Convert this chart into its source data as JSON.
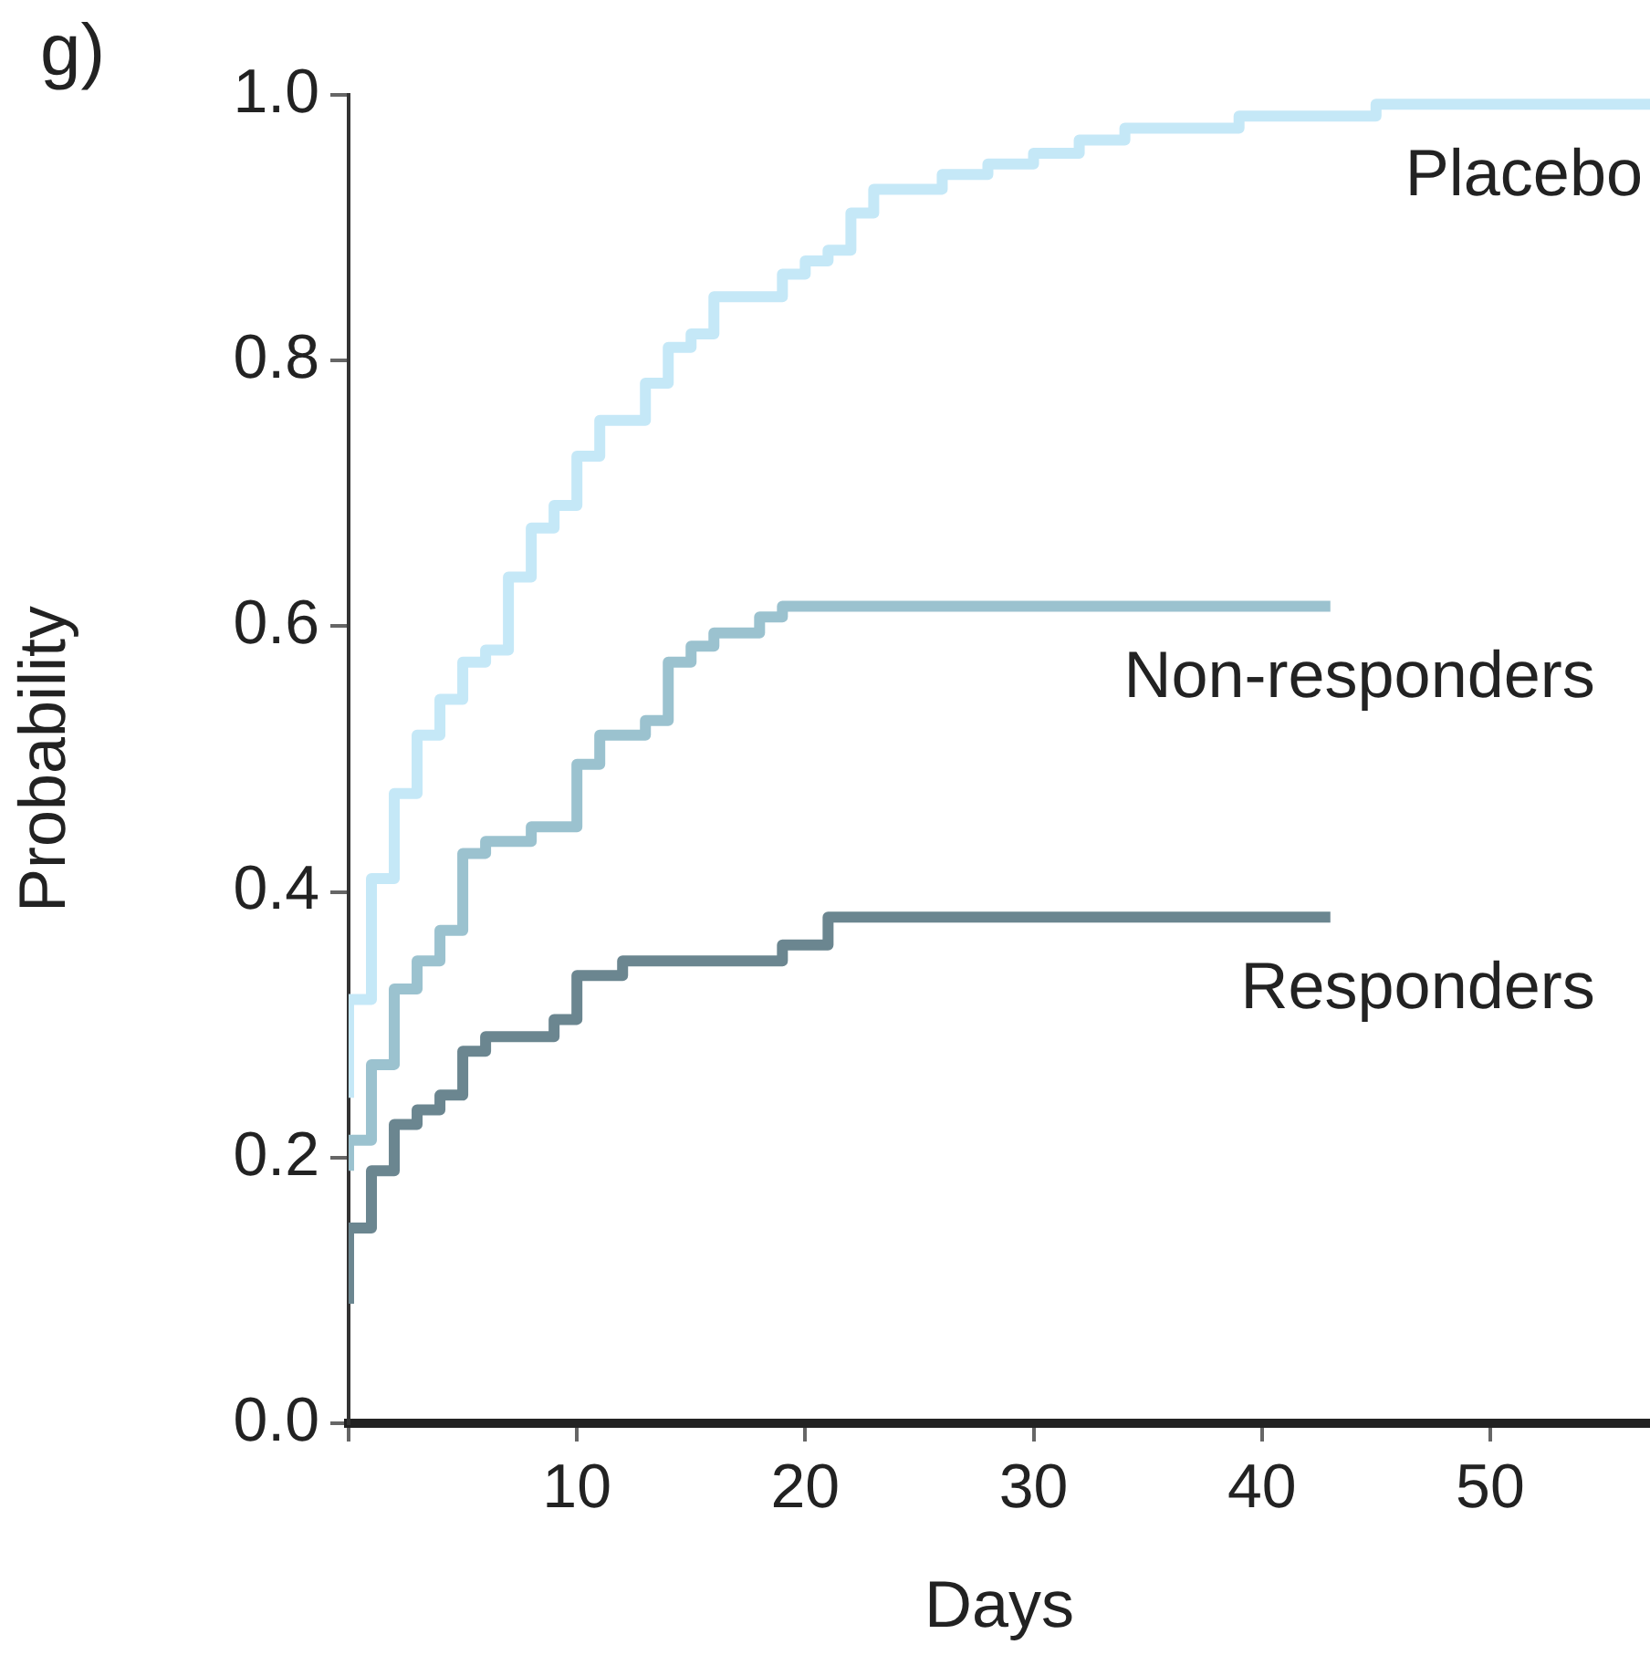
{
  "chart_data": {
    "type": "step",
    "xlabel": "Days",
    "ylabel": "Probability",
    "annotations": [
      "g)"
    ],
    "xlim": [
      0,
      57
    ],
    "xticks": [
      {
        "value": 0,
        "label": null
      },
      10,
      20,
      30,
      40,
      50
    ],
    "ylim": [
      0,
      1
    ],
    "yticks": [
      "0.0",
      0.2,
      0.4,
      0.6,
      0.8,
      "1.0"
    ],
    "grid": false,
    "legend": false,
    "series": [
      {
        "name": "Placebo",
        "color": "#c5e8f7",
        "x": [
          0,
          1,
          2,
          3,
          4,
          5,
          6,
          7,
          8,
          9,
          10,
          11,
          13,
          14,
          15,
          16,
          19,
          20,
          21,
          22,
          23,
          26,
          28,
          30,
          32,
          34,
          39,
          45,
          49,
          57
        ],
        "values": [
          0.245,
          0.319,
          0.41,
          0.474,
          0.518,
          0.545,
          0.573,
          0.582,
          0.637,
          0.674,
          0.691,
          0.728,
          0.755,
          0.783,
          0.81,
          0.82,
          0.848,
          0.865,
          0.875,
          0.883,
          0.911,
          0.929,
          0.94,
          0.948,
          0.956,
          0.966,
          0.975,
          0.984,
          0.993,
          0.993
        ]
      },
      {
        "name": "Non-responders",
        "color": "#9bc2cf",
        "x": [
          0,
          1,
          2,
          3,
          4,
          5,
          6,
          8,
          10,
          11,
          13,
          14,
          15,
          16,
          18,
          19,
          43
        ],
        "values": [
          0.19,
          0.213,
          0.27,
          0.327,
          0.348,
          0.371,
          0.429,
          0.438,
          0.449,
          0.496,
          0.518,
          0.529,
          0.573,
          0.585,
          0.595,
          0.607,
          0.615
        ]
      },
      {
        "name": "Responders",
        "color": "#6b8690",
        "x": [
          0,
          1,
          2,
          3,
          4,
          5,
          6,
          9,
          10,
          12,
          19,
          21,
          23,
          43
        ],
        "values": [
          0.09,
          0.147,
          0.19,
          0.225,
          0.236,
          0.247,
          0.28,
          0.291,
          0.304,
          0.337,
          0.348,
          0.36,
          0.381,
          0.381
        ]
      }
    ]
  }
}
